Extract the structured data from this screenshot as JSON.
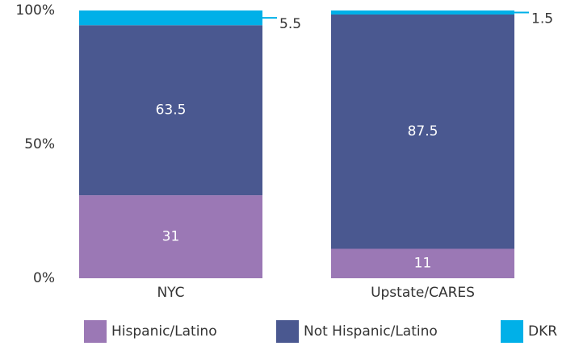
{
  "chart_data": {
    "type": "stacked_bar",
    "categories": [
      "NYC",
      "Upstate/CARES"
    ],
    "series": [
      {
        "name": "Hispanic/Latino",
        "color": "#9b78b5",
        "values": [
          31,
          11
        ]
      },
      {
        "name": "Not Hispanic/Latino",
        "color": "#4a5890",
        "values": [
          63.5,
          87.5
        ]
      },
      {
        "name": "DKR",
        "color": "#00b0e8",
        "values": [
          5.5,
          1.5
        ]
      }
    ],
    "ylim": [
      0,
      100
    ],
    "yticks": [
      {
        "value": 0,
        "label": "0%"
      },
      {
        "value": 50,
        "label": "50%"
      },
      {
        "value": 100,
        "label": "100%"
      }
    ],
    "grid": false,
    "legend": "bottom"
  }
}
